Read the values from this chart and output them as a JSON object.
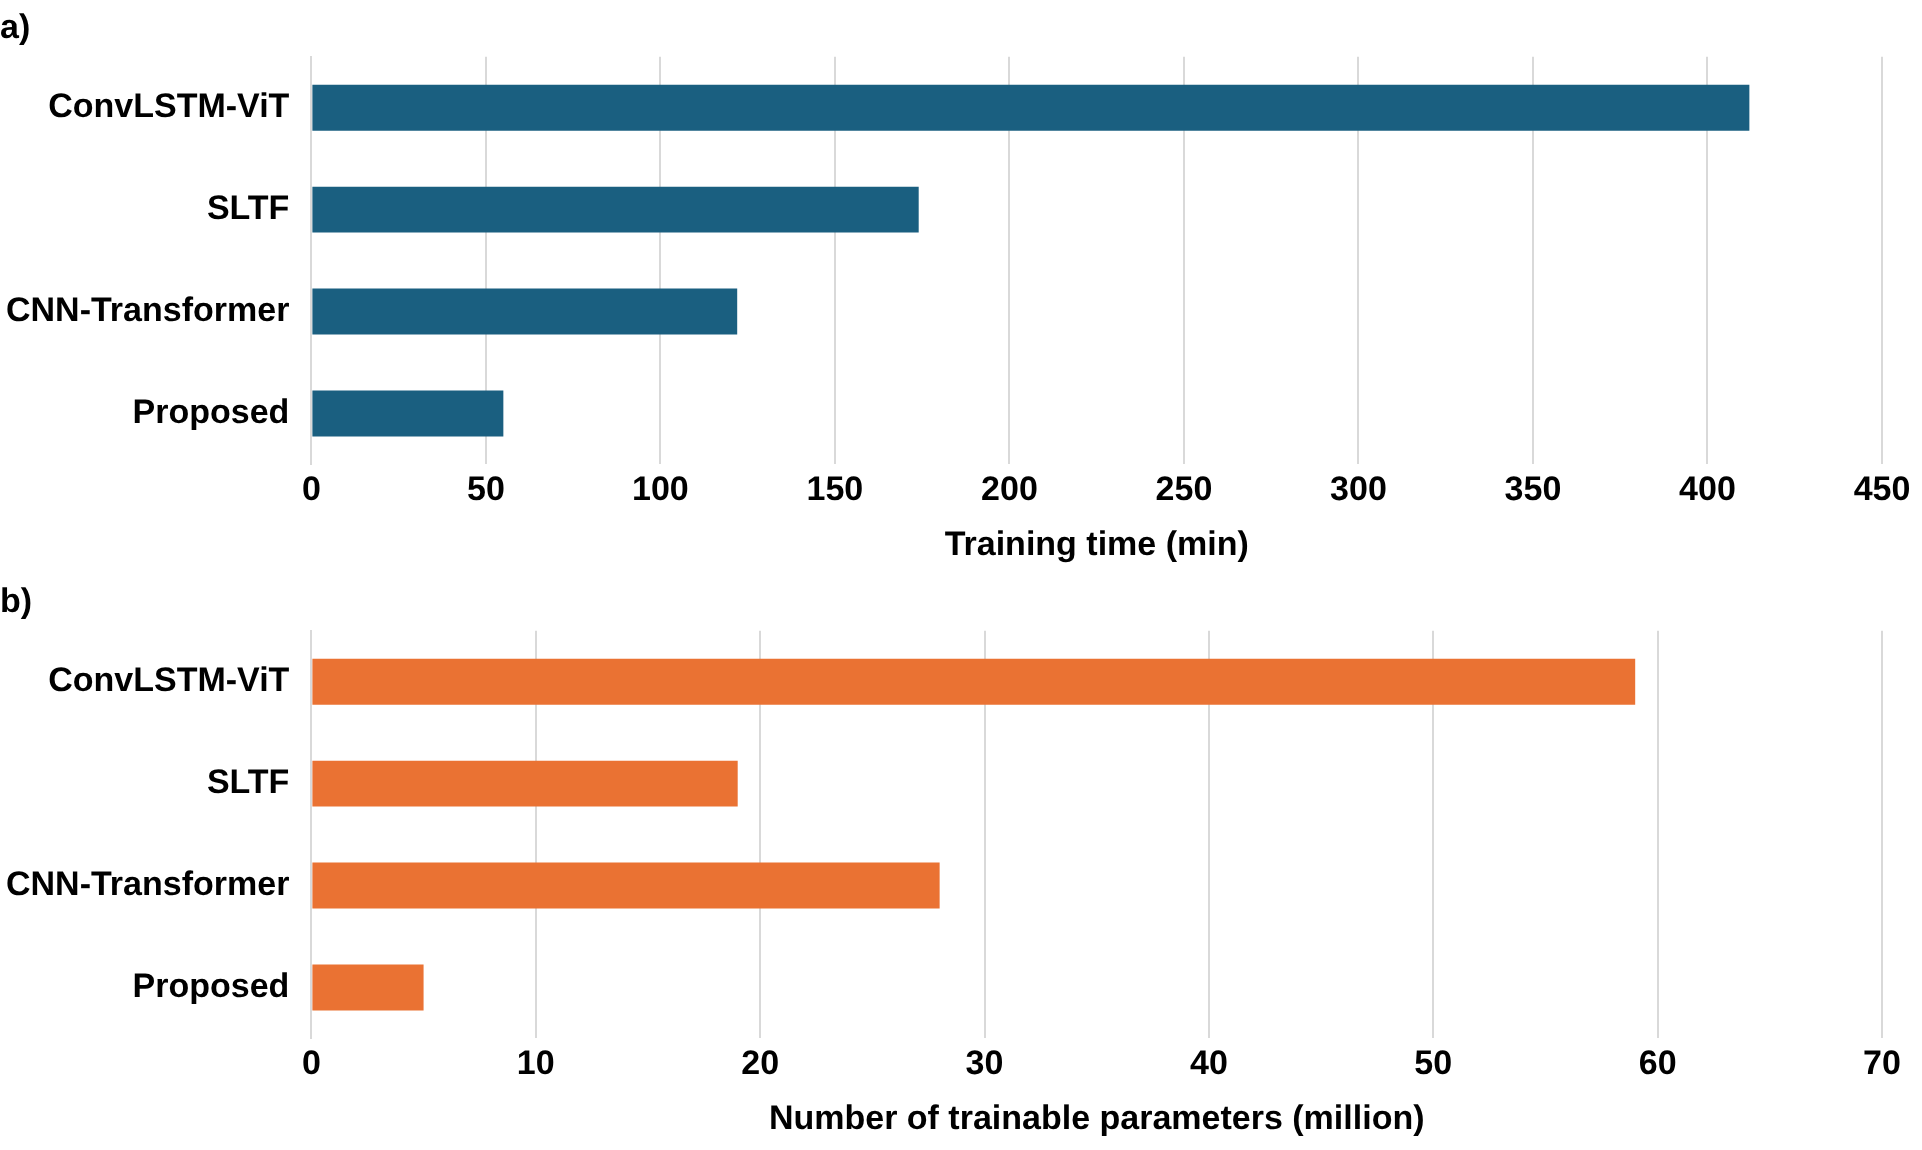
{
  "chart_data": [
    {
      "type": "bar",
      "title": "a)",
      "orientation": "horizontal",
      "categories": [
        "ConvLSTM-ViT",
        "SLTF",
        "CNN-Transformer",
        "Proposed"
      ],
      "values": [
        412,
        174,
        122,
        55
      ],
      "color": "#1a5f80",
      "xlim": [
        0,
        450
      ],
      "xticks": [
        0,
        50,
        100,
        150,
        200,
        250,
        300,
        350,
        400,
        450
      ],
      "xlabel": "Training time (min)",
      "grid": "x",
      "legend": false
    },
    {
      "type": "bar",
      "title": "b)",
      "orientation": "horizontal",
      "categories": [
        "ConvLSTM-ViT",
        "SLTF",
        "CNN-Transformer",
        "Proposed"
      ],
      "values": [
        59,
        19,
        28,
        5
      ],
      "color": "#ea7233",
      "xlim": [
        0,
        70
      ],
      "xticks": [
        0,
        10,
        20,
        30,
        40,
        50,
        60,
        70
      ],
      "xlabel": "Number of trainable parameters (million)",
      "grid": "x",
      "legend": false
    }
  ]
}
